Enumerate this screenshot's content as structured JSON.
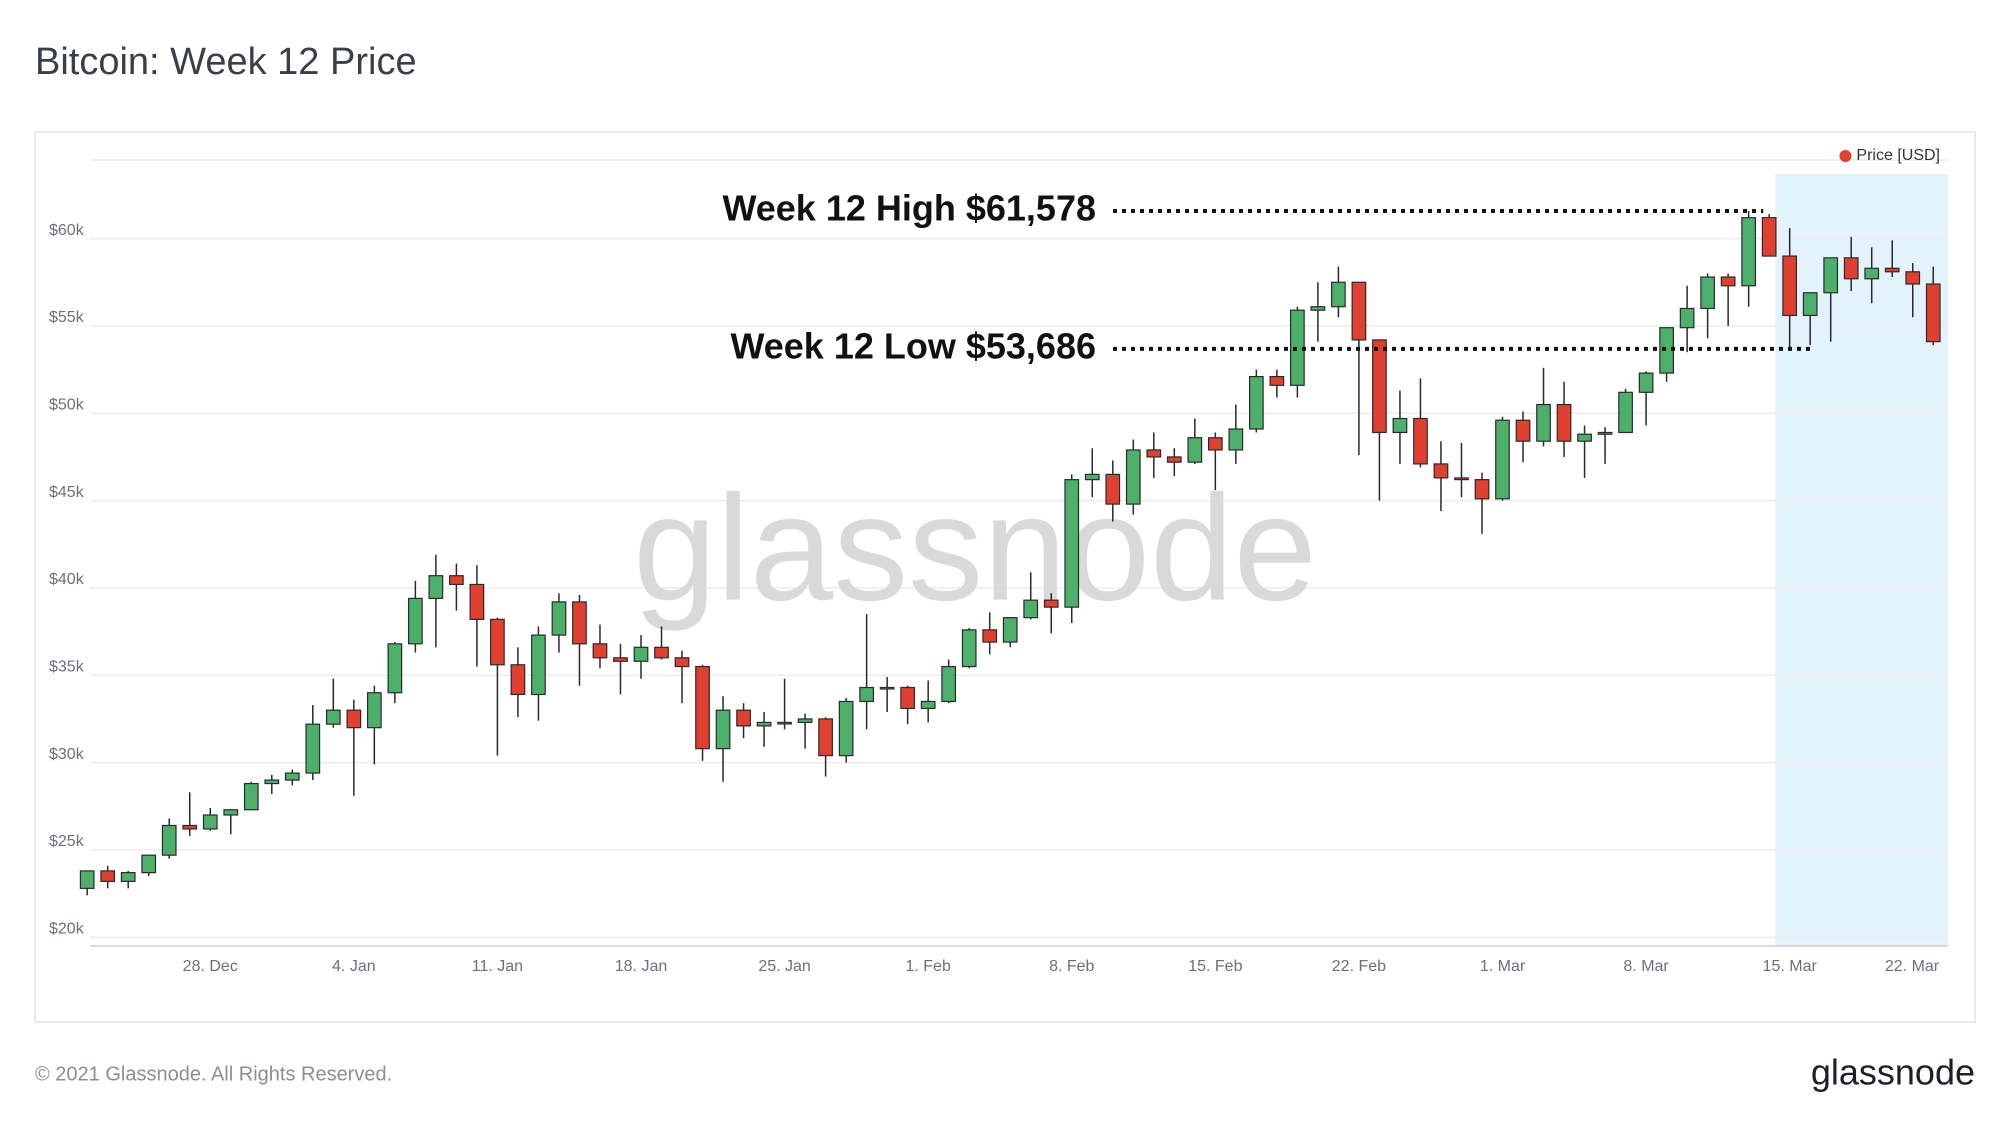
{
  "chart_data": {
    "type": "candlestick",
    "title": "Bitcoin: Week 12 Price",
    "categories": [
      null,
      null,
      null,
      null,
      null,
      null,
      "28. Dec",
      null,
      null,
      null,
      null,
      null,
      null,
      "4. Jan",
      null,
      null,
      null,
      null,
      null,
      null,
      "11. Jan",
      null,
      null,
      null,
      null,
      null,
      null,
      "18. Jan",
      null,
      null,
      null,
      null,
      null,
      null,
      "25. Jan",
      null,
      null,
      null,
      null,
      null,
      null,
      "1. Feb",
      null,
      null,
      null,
      null,
      null,
      null,
      "8. Feb",
      null,
      null,
      null,
      null,
      null,
      null,
      "15. Feb",
      null,
      null,
      null,
      null,
      null,
      null,
      "22. Feb",
      null,
      null,
      null,
      null,
      null,
      null,
      "1. Mar",
      null,
      null,
      null,
      null,
      null,
      null,
      "8. Mar",
      null,
      null,
      null,
      null,
      null,
      null,
      "15. Mar",
      null,
      null,
      null,
      null,
      null,
      null,
      "22. Mar"
    ],
    "series": [
      {
        "name": "Price [USD]",
        "color": "#e0402f",
        "up_color": "#4caf6a",
        "down_color": "#e0402f",
        "open": [
          22800,
          23800,
          23200,
          23700,
          24700,
          26400,
          26200,
          27000,
          27300,
          28800,
          29000,
          29400,
          32200,
          33000,
          32000,
          34000,
          36800,
          39400,
          40700,
          40200,
          38200,
          35600,
          33900,
          37300,
          39200,
          36800,
          36000,
          35800,
          36600,
          36000,
          35500,
          30800,
          33000,
          32100,
          32300,
          32300,
          32500,
          30400,
          33500,
          34300,
          34300,
          33100,
          33500,
          35500,
          37600,
          36900,
          38300,
          39300,
          38900,
          46200,
          46500,
          44800,
          47900,
          47500,
          47200,
          48600,
          47900,
          49100,
          52100,
          51600,
          55900,
          56100,
          57500,
          54200,
          48900,
          49700,
          47100,
          46300,
          46200,
          45100,
          49600,
          48400,
          50500,
          48400,
          48800,
          48900,
          51200,
          52300,
          54900,
          56000,
          57800,
          57300,
          61200,
          59000,
          55600,
          56900,
          58900,
          57700,
          58300,
          58100,
          57400
        ],
        "high": [
          23800,
          24100,
          23800,
          24700,
          26800,
          28300,
          27400,
          27300,
          28900,
          29300,
          29600,
          33300,
          34800,
          33600,
          34400,
          36900,
          40400,
          41900,
          41400,
          41300,
          38300,
          36600,
          37800,
          39700,
          39600,
          37900,
          36800,
          37300,
          37800,
          36400,
          35600,
          33800,
          33400,
          32900,
          34800,
          32800,
          32600,
          33700,
          38500,
          34900,
          34400,
          34700,
          35900,
          37700,
          38600,
          38300,
          40900,
          39700,
          46500,
          48000,
          47300,
          48500,
          48900,
          48000,
          49700,
          48900,
          50500,
          52500,
          52500,
          56100,
          57500,
          58400,
          57500,
          54200,
          51300,
          52000,
          48400,
          48300,
          46600,
          49800,
          50100,
          52600,
          51800,
          49300,
          49200,
          51400,
          52400,
          54900,
          57300,
          58000,
          58000,
          61578,
          61400,
          60600,
          56900,
          58900,
          60100,
          59500,
          59900,
          58600,
          58400
        ],
        "low": [
          22400,
          22800,
          22800,
          23500,
          24500,
          25800,
          26100,
          25900,
          27300,
          28200,
          28700,
          29000,
          32000,
          28100,
          29900,
          33400,
          36300,
          36600,
          38700,
          35500,
          30400,
          32600,
          32400,
          36300,
          34400,
          35400,
          33900,
          34800,
          35900,
          33400,
          30100,
          28900,
          31400,
          30900,
          31900,
          30800,
          29200,
          30000,
          31900,
          32900,
          32200,
          32300,
          33400,
          35400,
          36200,
          36600,
          38200,
          37400,
          38000,
          45200,
          43800,
          44200,
          46300,
          46400,
          47100,
          45600,
          47100,
          48900,
          50900,
          50900,
          54100,
          55500,
          47600,
          45000,
          47100,
          46900,
          44400,
          45200,
          43100,
          45000,
          47200,
          48100,
          47500,
          46300,
          47100,
          48900,
          49300,
          51800,
          53500,
          54300,
          55000,
          56100,
          59000,
          53686,
          53900,
          54100,
          57000,
          56300,
          57800,
          55500,
          53900
        ],
        "close": [
          23800,
          23200,
          23700,
          24700,
          26400,
          26200,
          27000,
          27300,
          28800,
          29000,
          29400,
          32200,
          33000,
          32000,
          34000,
          36800,
          39400,
          40700,
          40200,
          38200,
          35600,
          33900,
          37300,
          39200,
          36800,
          36000,
          35800,
          36600,
          36000,
          35500,
          30800,
          33000,
          32100,
          32300,
          32300,
          32500,
          30400,
          33500,
          34300,
          34300,
          33100,
          33500,
          35500,
          37600,
          36900,
          38300,
          39300,
          38900,
          46200,
          46500,
          44800,
          47900,
          47500,
          47200,
          48600,
          47900,
          49100,
          52100,
          51600,
          55900,
          56100,
          57500,
          54200,
          48900,
          49700,
          47100,
          46300,
          46200,
          45100,
          49600,
          48400,
          50500,
          48400,
          48800,
          48900,
          51200,
          52300,
          54900,
          56000,
          57800,
          57300,
          61200,
          59000,
          55600,
          56900,
          58900,
          57700,
          58300,
          58100,
          57400,
          54100
        ]
      }
    ],
    "ylim": [
      19500,
      64500
    ],
    "yticks": [
      {
        "value": 20000,
        "label": "$20k"
      },
      {
        "value": 25000,
        "label": "$25k"
      },
      {
        "value": 30000,
        "label": "$30k"
      },
      {
        "value": 35000,
        "label": "$35k"
      },
      {
        "value": 40000,
        "label": "$40k"
      },
      {
        "value": 45000,
        "label": "$45k"
      },
      {
        "value": 50000,
        "label": "$50k"
      },
      {
        "value": 55000,
        "label": "$55k"
      },
      {
        "value": 60000,
        "label": "$60k"
      }
    ],
    "grid": true,
    "legend": "top-right",
    "annotations": [
      {
        "text": "Week 12 High $61,578",
        "value": 61578
      },
      {
        "text": "Week 12 Low $53,686",
        "value": 53686
      }
    ],
    "watermark": "glassnode",
    "footer": "© 2021 Glassnode. All Rights Reserved.",
    "logo": "glassnode"
  }
}
